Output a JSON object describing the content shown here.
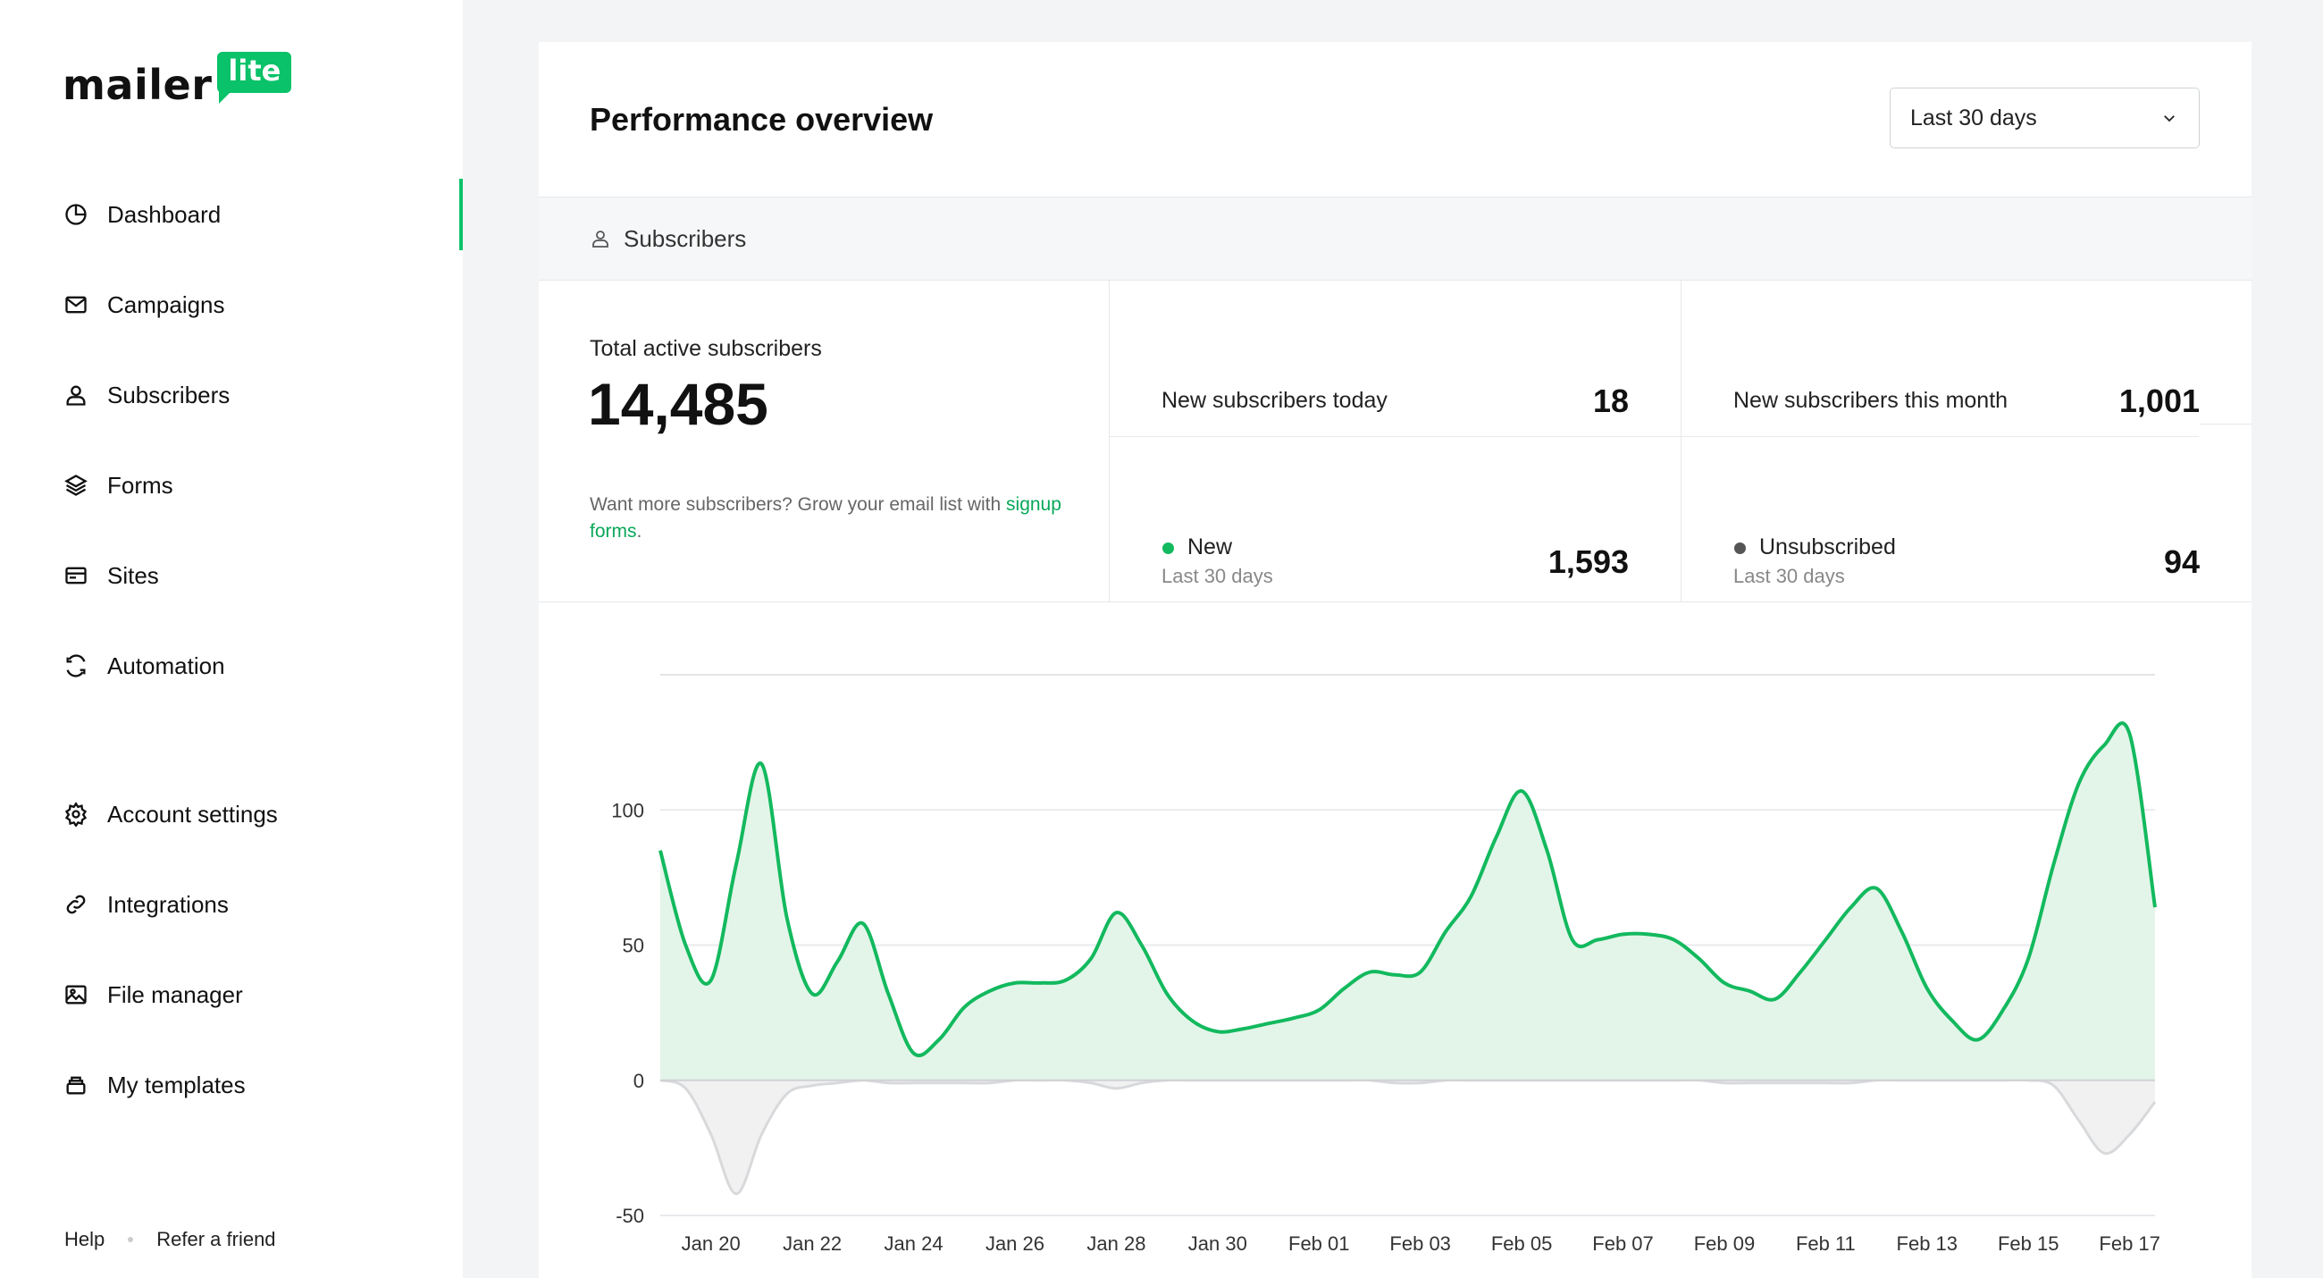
{
  "brand": {
    "wordmark": "mailer",
    "badge": "lite",
    "accent": "#09c269"
  },
  "sidebar": {
    "items": [
      {
        "label": "Dashboard",
        "icon": "clock-pie-icon",
        "active": true
      },
      {
        "label": "Campaigns",
        "icon": "envelope-icon"
      },
      {
        "label": "Subscribers",
        "icon": "user-icon"
      },
      {
        "label": "Forms",
        "icon": "layers-icon"
      },
      {
        "label": "Sites",
        "icon": "browser-window-icon"
      },
      {
        "label": "Automation",
        "icon": "refresh-icon"
      },
      {
        "label": "Account settings",
        "icon": "gear-icon"
      },
      {
        "label": "Integrations",
        "icon": "link-icon"
      },
      {
        "label": "File manager",
        "icon": "image-icon"
      },
      {
        "label": "My templates",
        "icon": "stack-icon"
      }
    ],
    "footer": {
      "help": "Help",
      "refer": "Refer a friend"
    }
  },
  "main": {
    "title": "Performance overview",
    "range_select": {
      "value": "Last 30 days"
    },
    "section": "Subscribers",
    "stats": {
      "total_label": "Total active subscribers",
      "total_value": "14,485",
      "hint_text": "Want more subscribers? Grow your email list with",
      "hint_link": "signup forms",
      "hint_end": ".",
      "today_label": "New subscribers today",
      "today_value": "18",
      "month_label": "New subscribers this month",
      "month_value": "1,001",
      "new_label": "New",
      "new_sub": "Last 30 days",
      "new_value": "1,593",
      "unsub_label": "Unsubscribed",
      "unsub_sub": "Last 30 days",
      "unsub_value": "94"
    }
  },
  "chart_data": {
    "type": "area",
    "x_tick_labels": [
      "Jan 20",
      "Jan 22",
      "Jan 24",
      "Jan 26",
      "Jan 28",
      "Jan 30",
      "Feb 01",
      "Feb 03",
      "Feb 05",
      "Feb 07",
      "Feb 09",
      "Feb 11",
      "Feb 13",
      "Feb 15",
      "Feb 17"
    ],
    "y_ticks": [
      -50,
      0,
      50,
      100
    ],
    "ylim": [
      -50,
      150
    ],
    "grid": true,
    "series": [
      {
        "name": "New",
        "color": "#13b95e",
        "x": [
          "Jan 19",
          "Jan 19.5",
          "Jan 20",
          "Jan 20.5",
          "Jan 21",
          "Jan 21.5",
          "Jan 22",
          "Jan 22.5",
          "Jan 23",
          "Jan 23.5",
          "Jan 24",
          "Jan 24.5",
          "Jan 25",
          "Jan 25.5",
          "Jan 26",
          "Jan 26.5",
          "Jan 27",
          "Jan 27.5",
          "Jan 28",
          "Jan 28.5",
          "Jan 29",
          "Jan 29.5",
          "Jan 30",
          "Jan 30.5",
          "Jan 31",
          "Jan 31.5",
          "Feb 01",
          "Feb 01.5",
          "Feb 02",
          "Feb 02.5",
          "Feb 03",
          "Feb 03.5",
          "Feb 04",
          "Feb 04.5",
          "Feb 05",
          "Feb 05.5",
          "Feb 06",
          "Feb 06.5",
          "Feb 07",
          "Feb 07.5",
          "Feb 08",
          "Feb 08.5",
          "Feb 09",
          "Feb 09.5",
          "Feb 10",
          "Feb 10.5",
          "Feb 11",
          "Feb 11.5",
          "Feb 12",
          "Feb 12.5",
          "Feb 13",
          "Feb 13.5",
          "Feb 14",
          "Feb 14.5",
          "Feb 15",
          "Feb 15.5",
          "Feb 16",
          "Feb 16.5",
          "Feb 17",
          "Feb 17.5"
        ],
        "values": [
          85,
          50,
          37,
          80,
          117,
          60,
          32,
          44,
          58,
          32,
          10,
          15,
          27,
          33,
          36,
          36,
          37,
          45,
          62,
          50,
          32,
          22,
          18,
          19,
          21,
          23,
          26,
          34,
          40,
          39,
          40,
          55,
          68,
          90,
          107,
          85,
          52,
          52,
          54,
          54,
          52,
          45,
          36,
          33,
          30,
          40,
          52,
          64,
          71,
          55,
          34,
          22,
          15,
          26,
          45,
          80,
          110,
          124,
          128,
          64
        ],
        "role": "new subscribers per day"
      },
      {
        "name": "Unsubscribed",
        "color": "#d8d9db",
        "x": [
          "Jan 19",
          "Jan 19.5",
          "Jan 20",
          "Jan 20.5",
          "Jan 21",
          "Jan 21.5",
          "Jan 22",
          "Jan 22.5",
          "Jan 23",
          "Jan 23.5",
          "Jan 24",
          "Jan 24.5",
          "Jan 25",
          "Jan 25.5",
          "Jan 26",
          "Jan 26.5",
          "Jan 27",
          "Jan 27.5",
          "Jan 28",
          "Jan 28.5",
          "Jan 29",
          "Jan 29.5",
          "Jan 30",
          "Jan 30.5",
          "Jan 31",
          "Jan 31.5",
          "Feb 01",
          "Feb 01.5",
          "Feb 02",
          "Feb 02.5",
          "Feb 03",
          "Feb 03.5",
          "Feb 04",
          "Feb 04.5",
          "Feb 05",
          "Feb 05.5",
          "Feb 06",
          "Feb 06.5",
          "Feb 07",
          "Feb 07.5",
          "Feb 08",
          "Feb 08.5",
          "Feb 09",
          "Feb 09.5",
          "Feb 10",
          "Feb 10.5",
          "Feb 11",
          "Feb 11.5",
          "Feb 12",
          "Feb 12.5",
          "Feb 13",
          "Feb 13.5",
          "Feb 14",
          "Feb 14.5",
          "Feb 15",
          "Feb 15.5",
          "Feb 16",
          "Feb 16.5",
          "Feb 17",
          "Feb 17.5"
        ],
        "values": [
          0,
          -3,
          -20,
          -42,
          -20,
          -5,
          -2,
          -1,
          0,
          -1,
          -1,
          -1,
          -1,
          -1,
          0,
          0,
          0,
          -1,
          -3,
          -1,
          0,
          0,
          0,
          0,
          0,
          0,
          0,
          0,
          0,
          -1,
          -1,
          0,
          0,
          0,
          0,
          0,
          0,
          0,
          0,
          0,
          0,
          0,
          -1,
          -1,
          -1,
          -1,
          -1,
          -1,
          0,
          0,
          0,
          0,
          0,
          0,
          0,
          -2,
          -15,
          -27,
          -20,
          -8
        ]
      }
    ]
  }
}
